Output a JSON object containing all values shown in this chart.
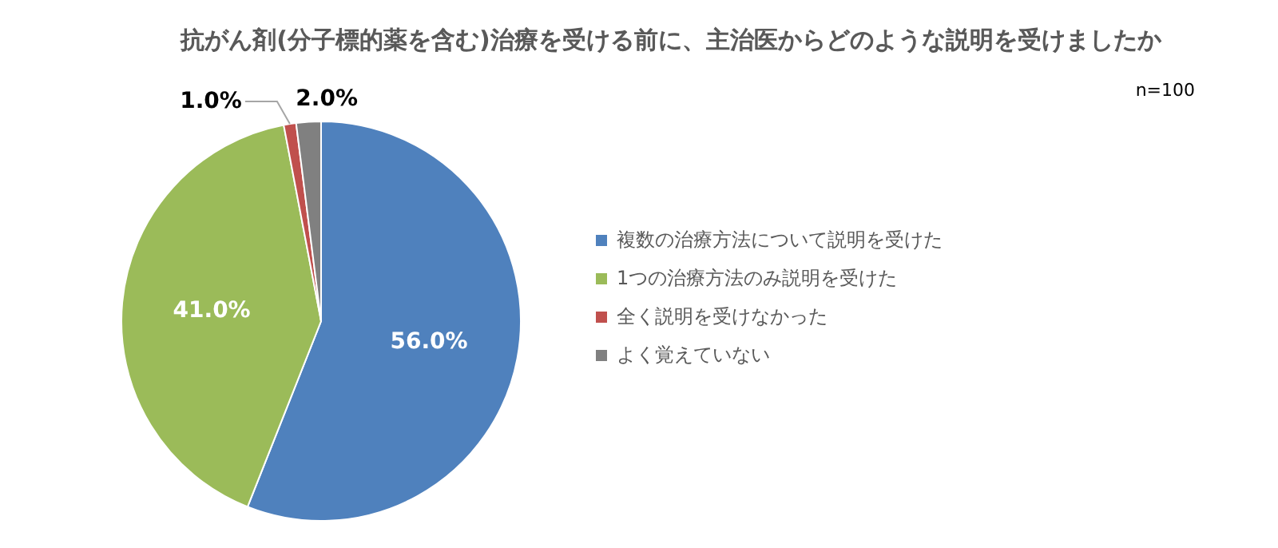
{
  "chart_data": {
    "type": "pie",
    "title": "抗がん剤(分子標的薬を含む)治療を受ける前に、主治医からどのような説明を受けましたか",
    "annotations": [
      "n=100"
    ],
    "categories": [
      "複数の治療方法について説明を受けた",
      "1つの治療方法のみ説明を受けた",
      "全く説明を受けなかった",
      "よく覚えていない"
    ],
    "values": [
      56,
      41,
      1,
      2
    ],
    "colors": [
      "#4f81bd",
      "#9bbb59",
      "#c0504d",
      "#808080"
    ],
    "value_labels": [
      "56.0%",
      "41.0%",
      "1.0%",
      "2.0%"
    ],
    "legend": "right"
  }
}
